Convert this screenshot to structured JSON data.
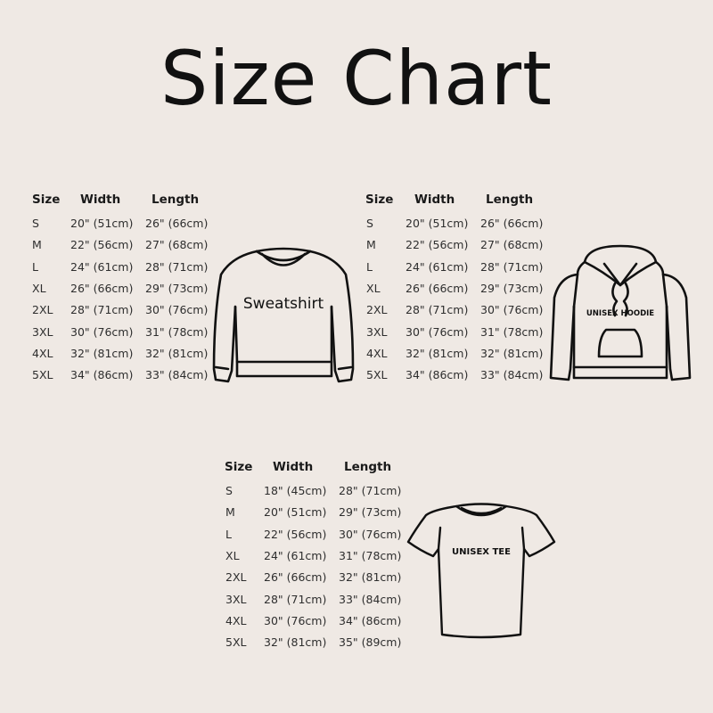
{
  "title": "Size Chart",
  "colors": {
    "background": "#efe9e4",
    "text": "#2e2e2e",
    "outline": "#111111"
  },
  "columns": [
    "Size",
    "Width",
    "Length"
  ],
  "tables": [
    {
      "garment": "Sweatshirt",
      "icon": "sweatshirt-icon",
      "rows": [
        [
          "S",
          "20\" (51cm)",
          "26\" (66cm)"
        ],
        [
          "M",
          "22\" (56cm)",
          "27\" (68cm)"
        ],
        [
          "L",
          "24\" (61cm)",
          "28\" (71cm)"
        ],
        [
          "XL",
          "26\" (66cm)",
          "29\" (73cm)"
        ],
        [
          "2XL",
          "28\" (71cm)",
          "30\" (76cm)"
        ],
        [
          "3XL",
          "30\" (76cm)",
          "31\" (78cm)"
        ],
        [
          "4XL",
          "32\" (81cm)",
          "32\" (81cm)"
        ],
        [
          "5XL",
          "34\" (86cm)",
          "33\" (84cm)"
        ]
      ]
    },
    {
      "garment": "UNISEX HOODIE",
      "icon": "hoodie-icon",
      "rows": [
        [
          "S",
          "20\" (51cm)",
          "26\" (66cm)"
        ],
        [
          "M",
          "22\" (56cm)",
          "27\" (68cm)"
        ],
        [
          "L",
          "24\" (61cm)",
          "28\" (71cm)"
        ],
        [
          "XL",
          "26\" (66cm)",
          "29\" (73cm)"
        ],
        [
          "2XL",
          "28\" (71cm)",
          "30\" (76cm)"
        ],
        [
          "3XL",
          "30\" (76cm)",
          "31\" (78cm)"
        ],
        [
          "4XL",
          "32\" (81cm)",
          "32\" (81cm)"
        ],
        [
          "5XL",
          "34\" (86cm)",
          "33\" (84cm)"
        ]
      ]
    },
    {
      "garment": "UNISEX TEE",
      "icon": "tshirt-icon",
      "rows": [
        [
          "S",
          "18\" (45cm)",
          "28\" (71cm)"
        ],
        [
          "M",
          "20\" (51cm)",
          "29\" (73cm)"
        ],
        [
          "L",
          "22\" (56cm)",
          "30\" (76cm)"
        ],
        [
          "XL",
          "24\" (61cm)",
          "31\" (78cm)"
        ],
        [
          "2XL",
          "26\" (66cm)",
          "32\" (81cm)"
        ],
        [
          "3XL",
          "28\" (71cm)",
          "33\" (84cm)"
        ],
        [
          "4XL",
          "30\" (76cm)",
          "34\" (86cm)"
        ],
        [
          "5XL",
          "32\" (81cm)",
          "35\" (89cm)"
        ]
      ]
    }
  ]
}
